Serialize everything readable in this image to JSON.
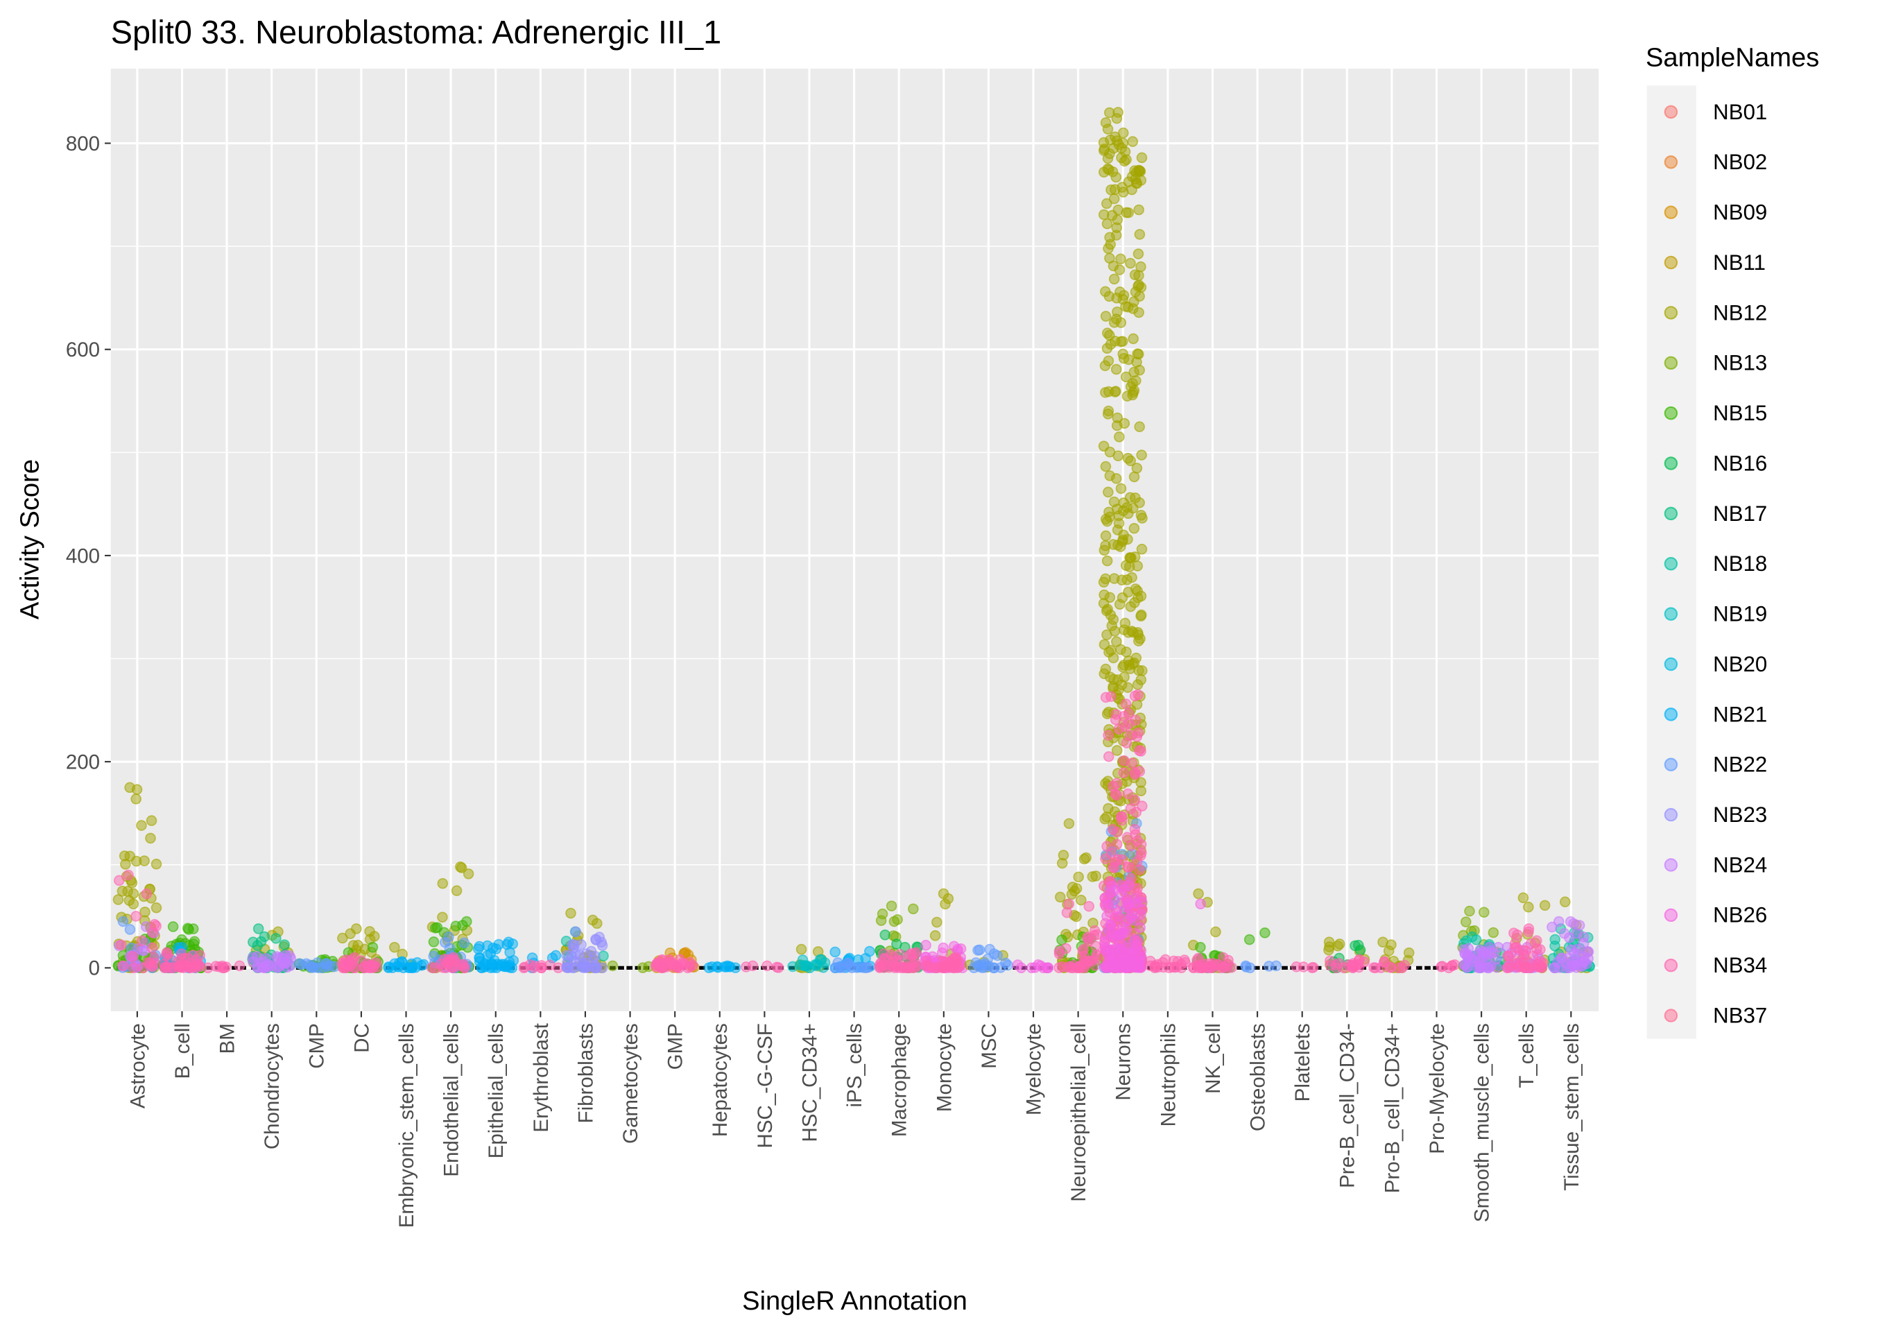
{
  "chart_data": {
    "type": "scatter",
    "subtype": "jitter-strip",
    "title": "Split0 33. Neuroblastoma: Adrenergic III_1",
    "xlabel": "SingleR Annotation",
    "ylabel": "Activity Score",
    "ylim": [
      -40,
      870
    ],
    "yticks": [
      0,
      200,
      400,
      600,
      800
    ],
    "grid": true,
    "legend": {
      "title": "SampleNames",
      "placement": "right",
      "entries": [
        "NB01",
        "NB02",
        "NB09",
        "NB11",
        "NB12",
        "NB13",
        "NB15",
        "NB16",
        "NB17",
        "NB18",
        "NB19",
        "NB20",
        "NB21",
        "NB22",
        "NB23",
        "NB24",
        "NB26",
        "NB34",
        "NB37"
      ],
      "colors": [
        "#F8766D",
        "#EA8331",
        "#D89000",
        "#C09B00",
        "#A3A500",
        "#7CAE00",
        "#39B600",
        "#00BB4E",
        "#00BF7D",
        "#00C1A3",
        "#00BFC4",
        "#00BAE0",
        "#00B0F6",
        "#619CFF",
        "#9590FF",
        "#C77CFF",
        "#F564E3",
        "#FF64B0",
        "#FF6C91"
      ]
    },
    "categories": [
      "Astrocyte",
      "B_cell",
      "BM",
      "Chondrocytes",
      "CMP",
      "DC",
      "Embryonic_stem_cells",
      "Endothelial_cells",
      "Epithelial_cells",
      "Erythroblast",
      "Fibroblasts",
      "Gametocytes",
      "GMP",
      "Hepatocytes",
      "HSC_-G-CSF",
      "HSC_CD34+",
      "iPS_cells",
      "Macrophage",
      "Monocyte",
      "MSC",
      "Myelocyte",
      "Neuroepithelial_cell",
      "Neurons",
      "Neutrophils",
      "NK_cell",
      "Osteoblasts",
      "Platelets",
      "Pre-B_cell_CD34-",
      "Pro-B_cell_CD34+",
      "Pro-Myelocyte",
      "Smooth_muscle_cells",
      "T_cells",
      "Tissue_stem_cells"
    ],
    "groups": [
      [
        [
          "NB12",
          175,
          60
        ],
        [
          "NB15",
          30,
          20
        ],
        [
          "NB22",
          45,
          10
        ],
        [
          "NB24",
          40,
          15
        ],
        [
          "NB34",
          90,
          20
        ]
      ],
      [
        [
          "NB15",
          40,
          40
        ],
        [
          "NB21",
          20,
          20
        ],
        [
          "NB34",
          15,
          40
        ]
      ],
      [
        [
          "NB34",
          2,
          8
        ]
      ],
      [
        [
          "NB12",
          35,
          10
        ],
        [
          "NB17",
          38,
          30
        ],
        [
          "NB24",
          12,
          30
        ]
      ],
      [
        [
          "NB15",
          8,
          15
        ],
        [
          "NB22",
          5,
          15
        ]
      ],
      [
        [
          "NB12",
          38,
          20
        ],
        [
          "NB15",
          20,
          20
        ],
        [
          "NB34",
          10,
          30
        ]
      ],
      [
        [
          "NB12",
          20,
          3
        ],
        [
          "NB21",
          6,
          20
        ]
      ],
      [
        [
          "NB12",
          98,
          25
        ],
        [
          "NB15",
          45,
          30
        ],
        [
          "NB22",
          30,
          20
        ],
        [
          "NB34",
          10,
          20
        ]
      ],
      [
        [
          "NB21",
          25,
          40
        ]
      ],
      [
        [
          "NB21",
          12,
          5
        ],
        [
          "NB34",
          3,
          10
        ]
      ],
      [
        [
          "NB12",
          53,
          20
        ],
        [
          "NB18",
          35,
          5
        ],
        [
          "NB23",
          35,
          40
        ]
      ],
      [
        [
          "NB13",
          2,
          3
        ]
      ],
      [
        [
          "NB09",
          15,
          20
        ],
        [
          "NB34",
          8,
          30
        ]
      ],
      [
        [
          "NB21",
          2,
          10
        ]
      ],
      [
        [
          "NB34",
          2,
          5
        ]
      ],
      [
        [
          "NB12",
          18,
          8
        ],
        [
          "NB19",
          8,
          15
        ]
      ],
      [
        [
          "NB21",
          16,
          15
        ],
        [
          "NB22",
          5,
          15
        ]
      ],
      [
        [
          "NB13",
          60,
          25
        ],
        [
          "NB16",
          32,
          20
        ],
        [
          "NB34",
          15,
          40
        ]
      ],
      [
        [
          "NB12",
          72,
          10
        ],
        [
          "NB26",
          22,
          50
        ],
        [
          "NB34",
          10,
          30
        ]
      ],
      [
        [
          "NB12",
          12,
          5
        ],
        [
          "NB22",
          18,
          20
        ]
      ],
      [
        [
          "NB26",
          3,
          10
        ]
      ],
      [
        [
          "NB12",
          140,
          40
        ],
        [
          "NB15",
          30,
          20
        ],
        [
          "NB34",
          62,
          40
        ]
      ],
      [
        [
          "NB12",
          830,
          450
        ],
        [
          "NB22",
          140,
          40
        ],
        [
          "NB34",
          265,
          200
        ],
        [
          "NB26",
          80,
          100
        ]
      ],
      [
        [
          "NB34",
          8,
          20
        ]
      ],
      [
        [
          "NB12",
          72,
          10
        ],
        [
          "NB15",
          20,
          20
        ],
        [
          "NB26",
          62,
          3
        ],
        [
          "NB34",
          10,
          30
        ]
      ],
      [
        [
          "NB15",
          34,
          2
        ],
        [
          "NB22",
          2,
          5
        ]
      ],
      [
        [
          "NB34",
          1,
          4
        ]
      ],
      [
        [
          "NB12",
          25,
          10
        ],
        [
          "NB16",
          22,
          10
        ],
        [
          "NB34",
          8,
          20
        ]
      ],
      [
        [
          "NB12",
          25,
          15
        ],
        [
          "NB34",
          6,
          10
        ]
      ],
      [
        [
          "NB34",
          3,
          6
        ]
      ],
      [
        [
          "NB13",
          55,
          20
        ],
        [
          "NB18",
          30,
          30
        ],
        [
          "NB24",
          20,
          40
        ]
      ],
      [
        [
          "NB12",
          68,
          15
        ],
        [
          "NB24",
          20,
          30
        ],
        [
          "NB34",
          38,
          40
        ]
      ],
      [
        [
          "NB12",
          64,
          10
        ],
        [
          "NB18",
          38,
          30
        ],
        [
          "NB24",
          45,
          40
        ]
      ]
    ],
    "groups_format": "per category: [sample, max activity score, approx. number of cells]"
  }
}
